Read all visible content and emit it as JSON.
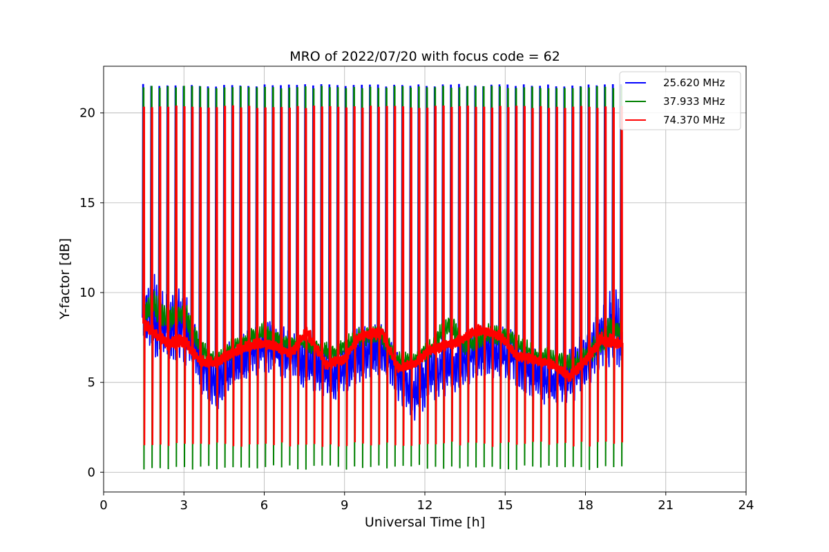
{
  "chart_data": {
    "type": "line",
    "title": "MRO of 2022/07/20 with focus code = 62",
    "xlabel": "Universal Time [h]",
    "ylabel": "Y-factor [dB]",
    "xlim": [
      0,
      24
    ],
    "ylim": [
      -1.1,
      22.6
    ],
    "xticks": [
      0,
      3,
      6,
      9,
      12,
      15,
      18,
      21,
      24
    ],
    "yticks": [
      0,
      5,
      10,
      15,
      20
    ],
    "grid": true,
    "legend_position": "top-right",
    "data_start_h": 1.5,
    "data_end_h": 19.35,
    "calibration_spike_count": 60,
    "series": [
      {
        "name": "25.620 MHz",
        "color": "#0000ff",
        "spike_peak_db": 21.5,
        "baseline_center_x": [
          1.5,
          1.8,
          2.3,
          3.0,
          3.6,
          4.2,
          5.0,
          6.0,
          6.8,
          7.6,
          8.6,
          9.5,
          10.3,
          11.0,
          11.6,
          12.2,
          13.2,
          14.3,
          15.2,
          16.0,
          16.8,
          17.6,
          18.3,
          19.0,
          19.35
        ],
        "baseline_center_y": [
          8.6,
          9.0,
          8.0,
          8.3,
          6.2,
          5.0,
          6.2,
          7.0,
          6.8,
          6.0,
          5.3,
          6.5,
          6.9,
          5.6,
          4.3,
          5.5,
          6.0,
          6.8,
          6.5,
          5.5,
          5.0,
          5.6,
          6.8,
          8.3,
          7.5
        ],
        "baseline_spread_y": [
          2.0,
          2.6,
          2.0,
          2.2,
          1.8,
          1.8,
          1.6,
          1.6,
          1.6,
          1.5,
          1.6,
          1.6,
          1.5,
          1.6,
          1.6,
          1.6,
          1.5,
          1.6,
          1.5,
          1.6,
          1.4,
          1.6,
          1.8,
          2.4,
          2.0
        ]
      },
      {
        "name": "37.933 MHz",
        "color": "#008000",
        "spike_peak_db": 21.4,
        "spike_floor_db": 0.2,
        "baseline_center_x": [
          1.5,
          1.8,
          2.3,
          3.0,
          3.6,
          4.2,
          5.0,
          6.0,
          6.8,
          7.6,
          8.6,
          9.5,
          10.3,
          11.0,
          11.6,
          12.2,
          12.9,
          13.6,
          14.3,
          15.2,
          16.0,
          16.8,
          17.6,
          18.3,
          19.0,
          19.35
        ],
        "baseline_center_y": [
          8.8,
          9.3,
          8.6,
          8.8,
          7.0,
          6.2,
          7.1,
          7.8,
          7.2,
          7.2,
          6.6,
          7.5,
          7.8,
          6.2,
          6.2,
          6.9,
          8.2,
          7.0,
          7.7,
          7.5,
          6.6,
          6.3,
          6.0,
          6.9,
          8.0,
          7.8
        ],
        "baseline_spread_y": [
          0.8,
          1.0,
          0.8,
          0.9,
          0.6,
          0.6,
          0.6,
          0.6,
          0.5,
          0.5,
          0.5,
          0.6,
          0.6,
          0.5,
          0.5,
          0.6,
          0.8,
          0.6,
          0.6,
          0.6,
          0.6,
          0.6,
          0.6,
          0.7,
          0.9,
          0.8
        ]
      },
      {
        "name": "74.370 MHz",
        "color": "#ff0000",
        "spike_peak_db": 20.3,
        "spike_floor_db": 1.5,
        "baseline_center_x": [
          1.5,
          2.0,
          2.4,
          3.0,
          3.6,
          4.2,
          5.0,
          5.8,
          6.4,
          7.0,
          7.6,
          8.3,
          9.0,
          9.6,
          10.4,
          11.0,
          11.6,
          12.2,
          13.0,
          14.0,
          14.8,
          15.4,
          16.0,
          16.8,
          17.4,
          18.0,
          18.6,
          19.35
        ],
        "baseline_center_y": [
          8.3,
          7.6,
          7.2,
          7.3,
          6.2,
          6.1,
          6.8,
          7.2,
          7.0,
          6.6,
          7.8,
          6.0,
          6.3,
          7.6,
          7.8,
          5.8,
          6.0,
          6.8,
          7.1,
          7.9,
          7.6,
          6.5,
          6.3,
          6.0,
          5.3,
          6.2,
          7.4,
          7.2
        ],
        "baseline_spread_y": [
          0.4,
          0.4,
          0.4,
          0.4,
          0.3,
          0.3,
          0.3,
          0.3,
          0.3,
          0.3,
          0.4,
          0.3,
          0.3,
          0.3,
          0.4,
          0.3,
          0.3,
          0.3,
          0.3,
          0.3,
          0.3,
          0.3,
          0.3,
          0.3,
          0.3,
          0.3,
          0.4,
          0.4
        ]
      }
    ]
  }
}
